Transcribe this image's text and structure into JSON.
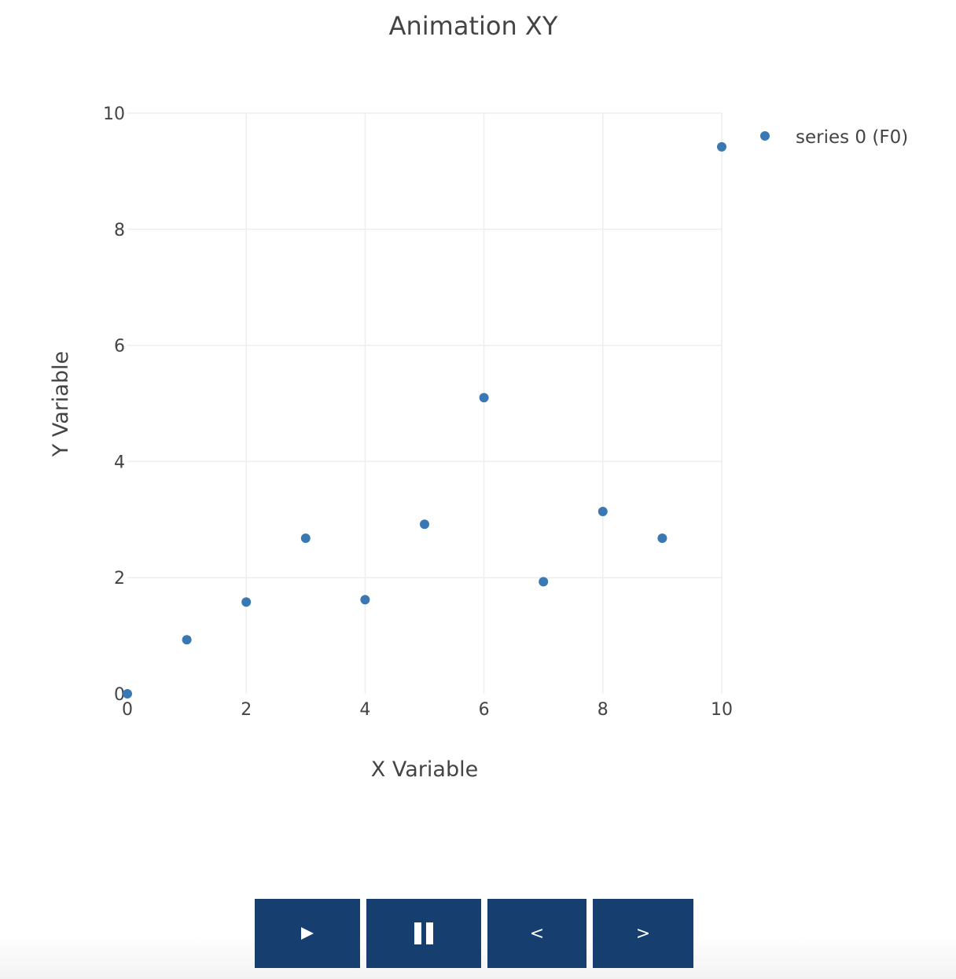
{
  "chart_data": {
    "type": "scatter",
    "title": "Animation XY",
    "xlabel": "X Variable",
    "ylabel": "Y Variable",
    "xlim": [
      0,
      10
    ],
    "ylim": [
      0,
      10
    ],
    "x_ticks": [
      "0",
      "2",
      "4",
      "6",
      "8",
      "10"
    ],
    "y_ticks": [
      "0",
      "2",
      "4",
      "6",
      "8",
      "10"
    ],
    "grid": true,
    "legend_position": "top-right",
    "series": [
      {
        "name": "series 0 (F0)",
        "color": "#3a78b4",
        "x": [
          0,
          1,
          2,
          3,
          4,
          5,
          6,
          7,
          8,
          9,
          10
        ],
        "y": [
          0,
          0.93,
          1.58,
          2.68,
          1.62,
          2.92,
          5.1,
          1.93,
          3.14,
          2.68,
          9.42
        ]
      }
    ]
  },
  "controls": {
    "play_icon": "play-icon",
    "pause_icon": "pause-icon",
    "prev_label": "<",
    "next_label": ">",
    "button_color": "#163f6f"
  }
}
